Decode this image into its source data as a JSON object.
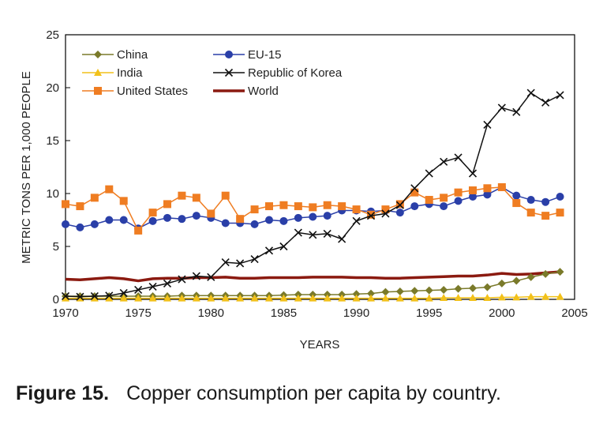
{
  "caption": {
    "figure_label": "Figure 15.",
    "text": "Copper consumption per capita by country."
  },
  "chart_data": {
    "type": "line",
    "xlabel": "YEARS",
    "ylabel": "METRIC TONS PER 1,000 PEOPLE",
    "xlim": [
      1970,
      2005
    ],
    "ylim": [
      0,
      25
    ],
    "x_ticks": [
      "1970",
      "1975",
      "1980",
      "1985",
      "1990",
      "1995",
      "2000",
      "2005"
    ],
    "y_ticks": [
      "0",
      "5",
      "10",
      "15",
      "20",
      "25"
    ],
    "grid": false,
    "legend_position": "top-left",
    "x": [
      1970,
      1971,
      1972,
      1973,
      1974,
      1975,
      1976,
      1977,
      1978,
      1979,
      1980,
      1981,
      1982,
      1983,
      1984,
      1985,
      1986,
      1987,
      1988,
      1989,
      1990,
      1991,
      1992,
      1993,
      1994,
      1995,
      1996,
      1997,
      1998,
      1999,
      2000,
      2001,
      2002,
      2003,
      2004
    ],
    "series": [
      {
        "name": "China",
        "color": "#7a7a2a",
        "marker": "diamond",
        "values": [
          0.3,
          0.3,
          0.3,
          0.3,
          0.3,
          0.3,
          0.3,
          0.3,
          0.35,
          0.35,
          0.35,
          0.35,
          0.35,
          0.35,
          0.35,
          0.4,
          0.45,
          0.45,
          0.45,
          0.45,
          0.5,
          0.55,
          0.7,
          0.75,
          0.8,
          0.85,
          0.9,
          1.0,
          1.05,
          1.15,
          1.5,
          1.75,
          2.1,
          2.4,
          2.6
        ]
      },
      {
        "name": "EU-15",
        "color": "#2a3fa8",
        "marker": "circle",
        "values": [
          7.1,
          6.8,
          7.1,
          7.5,
          7.5,
          6.7,
          7.4,
          7.7,
          7.6,
          7.9,
          7.7,
          7.2,
          7.2,
          7.1,
          7.5,
          7.4,
          7.7,
          7.8,
          7.9,
          8.4,
          8.4,
          8.3,
          8.4,
          8.2,
          8.8,
          9.0,
          8.8,
          9.3,
          9.7,
          9.9,
          10.6,
          9.8,
          9.4,
          9.2,
          9.7
        ]
      },
      {
        "name": "India",
        "color": "#f2c11a",
        "marker": "triangle",
        "values": [
          0.1,
          0.1,
          0.1,
          0.1,
          0.1,
          0.1,
          0.1,
          0.1,
          0.1,
          0.1,
          0.1,
          0.1,
          0.1,
          0.1,
          0.1,
          0.1,
          0.1,
          0.1,
          0.1,
          0.1,
          0.1,
          0.1,
          0.1,
          0.1,
          0.1,
          0.1,
          0.15,
          0.15,
          0.15,
          0.15,
          0.2,
          0.2,
          0.25,
          0.25,
          0.25
        ]
      },
      {
        "name": "Republic of Korea",
        "color": "#111111",
        "marker": "x",
        "values": [
          0.3,
          0.25,
          0.3,
          0.35,
          0.6,
          0.9,
          1.2,
          1.5,
          1.9,
          2.2,
          2.1,
          3.5,
          3.4,
          3.8,
          4.6,
          5.0,
          6.3,
          6.1,
          6.2,
          5.7,
          7.4,
          7.9,
          8.1,
          8.9,
          10.5,
          11.9,
          13.0,
          13.4,
          11.9,
          16.5,
          18.1,
          17.7,
          19.5,
          18.6,
          19.3
        ]
      },
      {
        "name": "United States",
        "color": "#ef7d22",
        "marker": "square",
        "values": [
          9.0,
          8.8,
          9.6,
          10.4,
          9.3,
          6.5,
          8.2,
          9.0,
          9.8,
          9.6,
          8.1,
          9.8,
          7.6,
          8.5,
          8.8,
          8.9,
          8.8,
          8.7,
          8.9,
          8.8,
          8.5,
          8.0,
          8.5,
          9.0,
          10.1,
          9.4,
          9.6,
          10.1,
          10.3,
          10.5,
          10.6,
          9.1,
          8.2,
          7.9,
          8.2
        ]
      },
      {
        "name": "World",
        "color": "#8b1a10",
        "marker": "none",
        "values": [
          1.9,
          1.85,
          1.95,
          2.05,
          1.95,
          1.75,
          1.95,
          2.0,
          2.0,
          2.05,
          2.05,
          2.1,
          2.0,
          2.0,
          2.05,
          2.05,
          2.05,
          2.1,
          2.1,
          2.1,
          2.05,
          2.05,
          2.0,
          2.0,
          2.05,
          2.1,
          2.15,
          2.2,
          2.2,
          2.3,
          2.45,
          2.35,
          2.4,
          2.5,
          2.6
        ]
      }
    ]
  }
}
